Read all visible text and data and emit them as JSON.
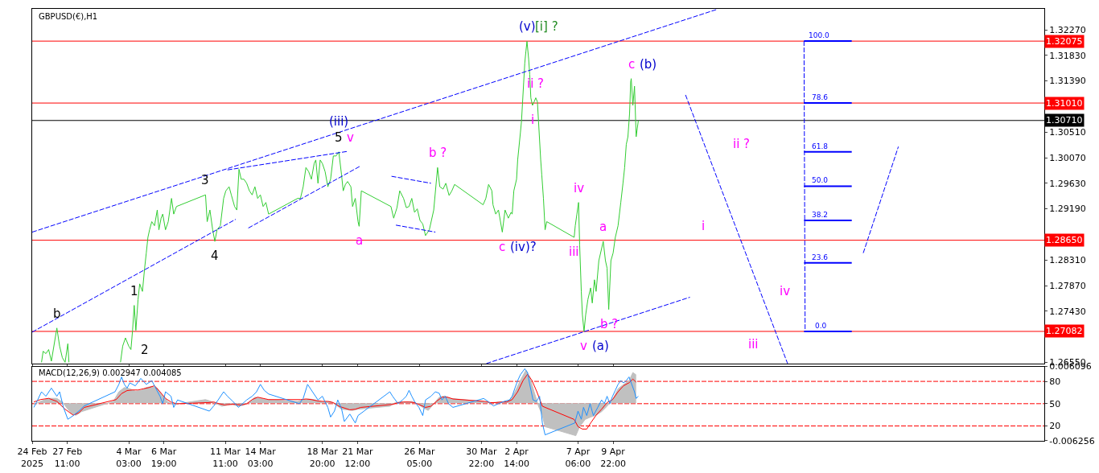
{
  "chart_data": [
    {
      "type": "line",
      "title": "GBPUSD(€),H1",
      "grid": false,
      "marker": "none",
      "tick_labels": "y",
      "xlim": [
        "2025-02-24T19:00",
        "2025-05-12T16:00"
      ],
      "xticks": [
        {
          "value": "2025-02-24T19:00",
          "label": null
        },
        {
          "value": "2025-02-27T11:00",
          "label": null
        },
        {
          "value": "2025-03-04T03:00",
          "label": null
        },
        {
          "value": "2025-03-06T19:00",
          "label": null
        },
        {
          "value": "2025-03-11T11:00",
          "label": null
        },
        {
          "value": "2025-03-14T03:00",
          "label": null
        },
        {
          "value": "2025-03-18T20:00",
          "label": null
        },
        {
          "value": "2025-03-21T12:00",
          "label": null
        },
        {
          "value": "2025-03-26T05:00",
          "label": null
        },
        {
          "value": "2025-03-30T22:00",
          "label": null
        },
        {
          "value": "2025-04-02T14:00",
          "label": null
        },
        {
          "value": "2025-04-07T06:00",
          "label": null
        },
        {
          "value": "2025-04-09T22:00",
          "label": null
        }
      ],
      "ylim": [
        1.2653,
        1.3263
      ],
      "yticks": [
        {
          "value": 1.3227,
          "label": "1.32270"
        },
        {
          "value": 1.3183,
          "label": "1.31830"
        },
        {
          "value": 1.3139,
          "label": "1.31390"
        },
        {
          "value": 1.3051,
          "label": "1.30510"
        },
        {
          "value": 1.3007,
          "label": "1.30070"
        },
        {
          "value": 1.2963,
          "label": "1.29630"
        },
        {
          "value": 1.2919,
          "label": "1.29190"
        },
        {
          "value": 1.2831,
          "label": "1.28310"
        },
        {
          "value": 1.2787,
          "label": "1.27870"
        },
        {
          "value": 1.2743,
          "label": "1.27430"
        },
        {
          "value": 1.2655,
          "label": "1.26550"
        }
      ],
      "series": [
        {
          "color": "#32cd32",
          "line_style": "solid",
          "x": [
            "2025-02-25T12:00",
            "2025-02-25T15:00",
            "2025-02-25T20:00",
            "2025-02-26T01:00",
            "2025-02-26T06:00",
            "2025-02-26T16:00",
            "2025-02-26T21:00",
            "2025-02-27T02:00",
            "2025-02-27T07:00",
            "2025-02-27T12:00",
            "2025-02-27T14:00",
            "2025-02-28T13:00",
            "2025-03-03T12:00",
            "2025-03-03T16:00",
            "2025-03-03T21:00",
            "2025-03-04T03:00",
            "2025-03-04T07:00",
            "2025-03-04T10:00",
            "2025-03-04T13:00",
            "2025-03-04T16:00",
            "2025-03-04T20:00",
            "2025-03-04T23:00",
            "2025-03-05T04:00",
            "2025-03-05T08:00",
            "2025-03-05T11:00",
            "2025-03-05T14:00",
            "2025-03-05T17:00",
            "2025-03-05T21:00",
            "2025-03-06T02:00",
            "2025-03-06T07:00",
            "2025-03-06T10:00",
            "2025-03-06T14:00",
            "2025-03-06T17:00",
            "2025-03-06T22:00",
            "2025-03-07T03:00",
            "2025-03-07T09:00",
            "2025-03-07T13:00",
            "2025-03-07T18:00",
            "2025-03-09T23:00",
            "2025-03-10T02:00",
            "2025-03-10T07:00",
            "2025-03-10T12:00",
            "2025-03-10T16:00",
            "2025-03-10T20:00",
            "2025-03-11T02:00",
            "2025-03-11T08:00",
            "2025-03-11T12:00",
            "2025-03-11T18:00",
            "2025-03-11T22:00",
            "2025-03-12T04:00",
            "2025-03-12T08:00",
            "2025-03-12T12:00",
            "2025-03-12T16:00",
            "2025-03-12T21:00",
            "2025-03-13T02:00",
            "2025-03-13T07:00",
            "2025-03-13T12:00",
            "2025-03-13T17:00",
            "2025-03-13T22:00",
            "2025-03-14T03:00",
            "2025-03-14T08:00",
            "2025-03-14T13:00",
            "2025-03-14T18:00",
            "2025-03-16T23:00",
            "2025-03-17T04:00",
            "2025-03-17T09:00",
            "2025-03-17T14:00",
            "2025-03-17T19:00",
            "2025-03-18T00:00",
            "2025-03-18T05:00",
            "2025-03-18T08:00",
            "2025-03-18T12:00",
            "2025-03-18T16:00",
            "2025-03-18T20:00",
            "2025-03-19T01:00",
            "2025-03-19T06:00",
            "2025-03-19T11:00",
            "2025-03-19T16:00",
            "2025-03-19T21:00",
            "2025-03-20T02:00",
            "2025-03-20T07:00",
            "2025-03-20T10:00",
            "2025-03-20T14:00",
            "2025-03-20T18:00",
            "2025-03-20T22:00",
            "2025-03-21T00:00",
            "2025-03-21T03:00",
            "2025-03-21T08:00",
            "2025-03-21T13:00",
            "2025-03-21T15:00",
            "2025-03-21T19:00",
            "2025-03-24T01:00",
            "2025-03-24T06:00",
            "2025-03-24T12:00",
            "2025-03-24T17:00",
            "2025-03-25T00:00",
            "2025-03-25T05:00",
            "2025-03-25T10:00",
            "2025-03-25T15:00",
            "2025-03-25T20:00",
            "2025-03-26T01:00",
            "2025-03-26T06:00",
            "2025-03-26T11:00",
            "2025-03-26T16:00",
            "2025-03-26T23:00",
            "2025-03-27T07:00",
            "2025-03-27T14:00",
            "2025-03-27T18:00",
            "2025-03-28T00:00",
            "2025-03-28T05:00",
            "2025-03-28T11:00",
            "2025-03-28T16:00",
            "2025-03-28T21:00",
            "2025-03-31T01:00",
            "2025-03-31T06:00",
            "2025-03-31T11:00",
            "2025-03-31T17:00",
            "2025-03-31T19:00",
            "2025-04-01T00:00",
            "2025-04-01T05:00",
            "2025-04-01T12:00",
            "2025-04-01T17:00",
            "2025-04-01T23:00",
            "2025-04-02T04:00",
            "2025-04-02T06:00",
            "2025-04-02T09:00",
            "2025-04-02T14:00",
            "2025-04-02T16:00",
            "2025-04-02T21:00",
            "2025-04-02T23:00",
            "2025-04-03T03:00",
            "2025-04-03T05:00",
            "2025-04-03T07:00",
            "2025-04-03T09:00",
            "2025-04-03T12:00",
            "2025-04-03T14:00",
            "2025-04-03T16:00",
            "2025-04-03T19:00",
            "2025-04-03T22:00",
            "2025-04-04T01:00",
            "2025-04-04T04:00",
            "2025-04-04T06:00",
            "2025-04-04T10:00",
            "2025-04-04T12:00",
            "2025-04-04T15:00",
            "2025-04-04T18:00",
            "2025-04-04T21:00",
            "2025-04-06T23:00",
            "2025-04-07T01:00",
            "2025-04-07T04:00",
            "2025-04-07T07:00",
            "2025-04-07T09:00",
            "2025-04-07T12:00",
            "2025-04-07T14:00",
            "2025-04-07T17:00",
            "2025-04-07T20:00",
            "2025-04-08T00:00",
            "2025-04-08T05:00",
            "2025-04-08T08:00",
            "2025-04-08T12:00",
            "2025-04-08T15:00",
            "2025-04-08T20:00",
            "2025-04-09T04:00",
            "2025-04-09T08:00",
            "2025-04-09T11:00",
            "2025-04-09T14:00",
            "2025-04-09T18:00",
            "2025-04-09T22:00",
            "2025-04-10T02:00",
            "2025-04-10T07:00",
            "2025-04-10T12:00",
            "2025-04-10T16:00",
            "2025-04-10T19:00",
            "2025-04-10T22:00",
            "2025-04-11T01:00",
            "2025-04-11T04:00",
            "2025-04-11T06:00",
            "2025-04-11T07:00",
            "2025-04-11T10:00",
            "2025-04-11T13:00",
            "2025-04-11T16:00",
            "2025-04-11T18:00",
            "2025-04-11T20:00"
          ],
          "values": [
            1.2655,
            1.2674,
            1.267,
            1.2677,
            1.2657,
            1.2714,
            1.2683,
            1.2663,
            1.2655,
            1.2687,
            1.2655,
            null,
            1.2655,
            1.2683,
            1.2697,
            1.2683,
            1.2677,
            1.271,
            1.2753,
            1.271,
            1.2763,
            1.279,
            1.2777,
            1.2817,
            1.2843,
            1.287,
            1.2883,
            1.2897,
            1.289,
            1.2917,
            1.2883,
            1.2903,
            1.291,
            1.2883,
            1.2897,
            1.2937,
            1.291,
            1.2923,
            1.2943,
            1.2897,
            1.2917,
            1.2883,
            1.2863,
            1.2883,
            1.289,
            1.2937,
            1.295,
            1.2957,
            1.2943,
            1.2923,
            1.2917,
            1.2987,
            1.297,
            1.297,
            1.2963,
            1.295,
            1.2943,
            1.2957,
            1.2937,
            1.2943,
            1.2923,
            1.293,
            1.291,
            1.2937,
            1.2937,
            1.2957,
            1.299,
            1.2983,
            1.297,
            1.2997,
            1.3003,
            1.2963,
            1.3003,
            1.2997,
            1.2983,
            1.2957,
            1.297,
            1.301,
            1.301,
            1.3017,
            1.2977,
            1.295,
            1.2961,
            1.2966,
            1.296,
            1.2957,
            1.2923,
            1.2937,
            1.2897,
            1.2889,
            1.295,
            1.2923,
            1.2903,
            1.2921,
            1.295,
            1.2937,
            1.2921,
            1.2923,
            1.2937,
            1.2913,
            1.2919,
            1.2899,
            1.2893,
            1.2873,
            1.2883,
            1.2917,
            1.299,
            1.2957,
            1.2953,
            1.2963,
            1.2942,
            1.295,
            1.2961,
            1.2926,
            1.2937,
            1.2961,
            1.295,
            1.2926,
            1.291,
            1.2917,
            1.2879,
            1.2917,
            1.2903,
            1.2913,
            1.291,
            1.295,
            1.297,
            1.3003,
            1.305,
            1.307,
            1.3137,
            1.317,
            1.319,
            1.3207,
            1.3177,
            1.315,
            1.311,
            1.3097,
            1.3103,
            1.311,
            1.3103,
            1.307,
            1.3003,
            1.2977,
            1.2937,
            1.2883,
            1.2897,
            1.287,
            1.289,
            1.291,
            1.293,
            1.2857,
            1.2777,
            1.2737,
            1.2708,
            1.2737,
            1.2763,
            1.2783,
            1.2757,
            1.2797,
            1.2777,
            1.283,
            1.2863,
            1.283,
            1.2817,
            1.2746,
            1.283,
            1.2843,
            1.287,
            1.289,
            1.293,
            1.2963,
            1.299,
            1.303,
            1.3043,
            1.3083,
            1.3137,
            1.3143,
            1.3097,
            1.313,
            1.3043,
            1.3057,
            1.3071
          ]
        },
        {
          "color": "#0000ff",
          "line_style": "dashed",
          "x": [
            "2025-02-24T19:00",
            "2025-04-17T19:00"
          ],
          "values": [
            1.2879,
            1.3262
          ]
        },
        {
          "color": "#0000ff",
          "line_style": "dashed",
          "x": [
            "2025-02-24T19:00",
            "2025-03-12T06:00"
          ],
          "values": [
            1.2707,
            1.2901
          ]
        },
        {
          "color": "#0000ff",
          "line_style": "dashed",
          "x": [
            "2025-03-13T05:00",
            "2025-03-21T18:00"
          ],
          "values": [
            1.2886,
            1.2993
          ]
        },
        {
          "color": "#0000ff",
          "line_style": "dashed",
          "x": [
            "2025-03-11T15:00",
            "2025-03-20T19:00"
          ],
          "values": [
            1.2986,
            1.3018
          ]
        },
        {
          "color": "#0000ff",
          "line_style": "dashed",
          "x": [
            "2025-03-24T02:00",
            "2025-03-27T02:00"
          ],
          "values": [
            1.2975,
            1.2963
          ]
        },
        {
          "color": "#0000ff",
          "line_style": "dashed",
          "x": [
            "2025-03-24T10:00",
            "2025-03-27T10:00"
          ],
          "values": [
            1.2891,
            1.2879
          ]
        },
        {
          "color": "#0000ff",
          "line_style": "dashed",
          "x": [
            "2025-03-31T07:00",
            "2025-04-15T18:00"
          ],
          "values": [
            1.2653,
            1.2767
          ]
        },
        {
          "color": "#0000ff",
          "line_style": "dashed",
          "x": [
            "2025-04-15T10:00",
            "2025-04-23T04:00"
          ],
          "values": [
            1.3115,
            1.2653
          ]
        },
        {
          "color": "#0000ff",
          "line_style": "dashed",
          "x": [
            "2025-04-28T22:00",
            "2025-05-01T14:00"
          ],
          "values": [
            1.2843,
            1.3026
          ]
        },
        {
          "color": "#0000ff",
          "line_style": "dashed",
          "x": [
            "2025-04-24T10:00",
            "2025-04-24T12:00"
          ],
          "values": [
            1.32075,
            1.27082
          ]
        },
        {
          "color": "#0000ff",
          "line_style": "solid",
          "x": [
            "2025-04-24T10:00",
            "2025-04-28T01:00"
          ],
          "values": [
            1.32075,
            1.32075
          ]
        },
        {
          "color": "#0000ff",
          "line_style": "solid",
          "x": [
            "2025-04-24T10:00",
            "2025-04-28T01:00"
          ],
          "values": [
            1.3101,
            1.3101
          ]
        },
        {
          "color": "#0000ff",
          "line_style": "solid",
          "x": [
            "2025-04-24T10:00",
            "2025-04-28T01:00"
          ],
          "values": [
            1.3017,
            1.3017
          ]
        },
        {
          "color": "#0000ff",
          "line_style": "solid",
          "x": [
            "2025-04-24T10:00",
            "2025-04-28T01:00"
          ],
          "values": [
            1.2958,
            1.2958
          ]
        },
        {
          "color": "#0000ff",
          "line_style": "solid",
          "x": [
            "2025-04-24T10:00",
            "2025-04-28T01:00"
          ],
          "values": [
            1.2899,
            1.2899
          ]
        },
        {
          "color": "#0000ff",
          "line_style": "solid",
          "x": [
            "2025-04-24T10:00",
            "2025-04-28T01:00"
          ],
          "values": [
            1.2826,
            1.2826
          ]
        },
        {
          "color": "#0000ff",
          "line_style": "solid",
          "x": [
            "2025-04-24T10:00",
            "2025-04-28T01:00"
          ],
          "values": [
            1.27082,
            1.27082
          ]
        }
      ],
      "ref_lines": [
        {
          "axis": "y",
          "value": 1.32075,
          "label": "1.32075",
          "color": "#ff0000"
        },
        {
          "axis": "y",
          "value": 1.3101,
          "label": "1.31010",
          "color": "#ff0000"
        },
        {
          "axis": "y",
          "value": 1.3071,
          "label": "1.30710",
          "color": "#000000",
          "line_style": "solid"
        },
        {
          "axis": "y",
          "value": 1.2865,
          "label": "1.28650",
          "color": "#ff0000"
        },
        {
          "axis": "y",
          "value": 1.27082,
          "label": "1.27082",
          "color": "#ff0000"
        }
      ],
      "annotations": [
        {
          "text": "100.0",
          "x": "2025-04-25T13:00",
          "y": 1.32075
        },
        {
          "text": "78.6",
          "x": "2025-04-25T15:00",
          "y": 1.3101
        },
        {
          "text": "61.8",
          "x": "2025-04-25T15:00",
          "y": 1.3017
        },
        {
          "text": "50.0",
          "x": "2025-04-25T15:00",
          "y": 1.2958
        },
        {
          "text": "38.2",
          "x": "2025-04-25T15:00",
          "y": 1.2899
        },
        {
          "text": "23.6",
          "x": "2025-04-25T15:00",
          "y": 1.2826
        },
        {
          "text": "0.0",
          "x": "2025-04-25T17:00",
          "y": 1.27082
        },
        {
          "text": "b",
          "x": "2025-02-26T16:00",
          "y": 1.2714
        },
        {
          "text": "1",
          "x": "2025-03-04T13:00",
          "y": 1.2753
        },
        {
          "text": "2",
          "x": "2025-03-04T07:00",
          "y": 1.2677
        },
        {
          "text": "3",
          "x": "2025-03-09T23:00",
          "y": 1.2943
        },
        {
          "text": "4",
          "x": "2025-03-10T16:00",
          "y": 1.2863
        },
        {
          "text": "5",
          "x": "2025-03-20T02:00",
          "y": 1.3017
        },
        {
          "text": "v",
          "x": "2025-03-20T02:00",
          "y": 1.3017
        },
        {
          "text": "(iii)",
          "x": "2025-03-20T02:00",
          "y": 1.3017
        },
        {
          "text": "a",
          "x": "2025-03-21T15:00",
          "y": 1.2889
        },
        {
          "text": "b ?",
          "x": "2025-03-27T14:00",
          "y": 1.299
        },
        {
          "text": "c",
          "x": "2025-04-01T12:00",
          "y": 1.2879
        },
        {
          "text": "(iv)?",
          "x": "2025-04-01T12:00",
          "y": 1.2879
        },
        {
          "text": "(v)",
          "x": "2025-04-03T09:00",
          "y": 1.3207
        },
        {
          "text": "[i] ?",
          "x": "2025-04-03T09:00",
          "y": 1.3207
        },
        {
          "text": "ii ?",
          "x": "2025-04-04T01:00",
          "y": 1.311
        },
        {
          "text": "i",
          "x": "2025-04-03T19:00",
          "y": 1.3097
        },
        {
          "text": "iv",
          "x": "2025-04-07T07:00",
          "y": 1.293
        },
        {
          "text": "iii",
          "x": "2025-04-06T23:00",
          "y": 1.287
        },
        {
          "text": "v",
          "x": "2025-04-07T17:00",
          "y": 1.2708
        },
        {
          "text": "(a)",
          "x": "2025-04-07T17:00",
          "y": 1.2708
        },
        {
          "text": "a",
          "x": "2025-04-09T04:00",
          "y": 1.2863
        },
        {
          "text": "b ?",
          "x": "2025-04-09T14:00",
          "y": 1.2746
        },
        {
          "text": "c",
          "x": "2025-04-11T07:00",
          "y": 1.3143
        },
        {
          "text": "(b)",
          "x": "2025-04-11T07:00",
          "y": 1.3143
        },
        {
          "text": "i",
          "x": "2025-04-16T18:00",
          "y": 1.2865
        },
        "ii ?",
        "iii",
        "iv"
      ]
    },
    {
      "type": "line",
      "title": "MACD(12,26,9) 0.002947 0.004085",
      "grid": false,
      "marker": "none",
      "xlim": [
        "2025-02-24T19:00",
        "2025-05-12T16:00"
      ],
      "xticks": [
        {
          "value": "2025-02-24T19:00",
          "label": "24 Feb 2025"
        },
        {
          "value": "2025-02-27T11:00",
          "label": "27 Feb 11:00"
        },
        {
          "value": "2025-03-04T03:00",
          "label": "4 Mar 03:00"
        },
        {
          "value": "2025-03-06T19:00",
          "label": "6 Mar 19:00"
        },
        {
          "value": "2025-03-11T11:00",
          "label": "11 Mar 11:00"
        },
        {
          "value": "2025-03-14T03:00",
          "label": "14 Mar 03:00"
        },
        {
          "value": "2025-03-18T20:00",
          "label": "18 Mar 20:00"
        },
        {
          "value": "2025-03-21T12:00",
          "label": "21 Mar 12:00"
        },
        {
          "value": "2025-03-26T05:00",
          "label": "26 Mar 05:00"
        },
        {
          "value": "2025-03-30T22:00",
          "label": "30 Mar 22:00"
        },
        {
          "value": "2025-04-02T14:00",
          "label": "2 Apr 14:00"
        },
        {
          "value": "2025-04-07T06:00",
          "label": "7 Apr 06:00"
        },
        {
          "value": "2025-04-09T22:00",
          "label": "9 Apr 22:00"
        }
      ],
      "ylim": [
        -0.006256,
        0.006096
      ],
      "yticks": [
        0.006096,
        -0.006256
      ],
      "y2lim": [
        0,
        100
      ],
      "y2ticks": [
        80,
        50,
        20
      ],
      "series": [
        {
          "type": "area",
          "color": "#c0c0c0",
          "x": [
            "2025-02-24T22:00",
            "2025-02-25T10:00",
            "2025-02-26T01:00",
            "2025-02-26T16:00",
            "2025-02-27T02:00",
            "2025-02-27T12:00",
            "2025-02-27T20:00",
            "2025-02-28T03:00",
            "2025-02-28T13:00",
            "2025-03-02T23:00",
            "2025-03-03T09:00",
            "2025-03-03T19:00",
            "2025-03-04T05:00",
            "2025-03-04T15:00",
            "2025-03-05T01:00",
            "2025-03-05T11:00",
            "2025-03-05T21:00",
            "2025-03-06T07:00",
            "2025-03-06T17:00",
            "2025-03-07T03:00",
            "2025-03-07T13:00",
            "2025-03-09T23:00",
            "2025-03-10T09:00",
            "2025-03-10T19:00",
            "2025-03-11T05:00",
            "2025-03-11T15:00",
            "2025-03-12T01:00",
            "2025-03-12T11:00",
            "2025-03-12T21:00",
            "2025-03-13T07:00",
            "2025-03-13T17:00",
            "2025-03-14T03:00",
            "2025-03-14T13:00",
            "2025-03-16T23:00",
            "2025-03-17T09:00",
            "2025-03-17T19:00",
            "2025-03-18T05:00",
            "2025-03-18T15:00",
            "2025-03-19T01:00",
            "2025-03-19T11:00",
            "2025-03-19T21:00",
            "2025-03-20T07:00",
            "2025-03-20T17:00",
            "2025-03-21T03:00",
            "2025-03-21T13:00",
            "2025-03-23T23:00",
            "2025-03-24T09:00",
            "2025-03-24T19:00",
            "2025-03-25T05:00",
            "2025-03-25T15:00",
            "2025-03-26T01:00",
            "2025-03-26T11:00",
            "2025-03-26T21:00",
            "2025-03-27T07:00",
            "2025-03-27T17:00",
            "2025-03-28T03:00",
            "2025-03-28T13:00",
            "2025-03-30T23:00",
            "2025-03-31T09:00",
            "2025-03-31T19:00",
            "2025-04-01T05:00",
            "2025-04-01T15:00",
            "2025-04-02T01:00",
            "2025-04-02T11:00",
            "2025-04-02T21:00",
            "2025-04-03T07:00",
            "2025-04-03T14:00",
            "2025-04-03T22:00",
            "2025-04-04T06:00",
            "2025-04-04T13:00",
            "2025-04-04T18:00",
            "2025-04-07T02:00",
            "2025-04-07T09:00",
            "2025-04-07T19:00",
            "2025-04-08T05:00",
            "2025-04-08T15:00",
            "2025-04-09T01:00",
            "2025-04-09T11:00",
            "2025-04-09T21:00",
            "2025-04-10T07:00",
            "2025-04-10T17:00",
            "2025-04-11T03:00",
            "2025-04-11T10:00",
            "2025-04-11T16:00"
          ],
          "values": [
            -0.0002,
            0.0003,
            0.0008,
            0.0008,
            0.0002,
            -0.001,
            -0.0018,
            -0.002,
            -0.0014,
            0.0003,
            0.0019,
            0.0026,
            0.0024,
            0.002,
            0.0021,
            0.0026,
            0.0028,
            0.0025,
            0.0012,
            0.0002,
            -0.0002,
            0.0006,
            0.0003,
            -0.0001,
            -0.0005,
            -0.0003,
            -0.0002,
            -0.0005,
            -0.0003,
            0.0002,
            0.001,
            0.0008,
            0.0006,
            0.0003,
            0.0006,
            0.0007,
            0.0006,
            0.0003,
            0.0002,
            0.0003,
            -0.0003,
            -0.001,
            -0.0011,
            -0.0012,
            -0.001,
            -0.0005,
            0.0001,
            0.0002,
            0.0002,
            0.0003,
            -0.0001,
            -0.0007,
            -0.0012,
            -0.0001,
            0.001,
            0.0012,
            0.0008,
            0.0003,
            0.0001,
            0.0001,
            0.0002,
            0.0002,
            0.0004,
            0.0019,
            0.0038,
            0.0055,
            0.0044,
            0.0019,
            -0.0005,
            -0.002,
            -0.0039,
            -0.0054,
            -0.0039,
            -0.0027,
            -0.0023,
            -0.002,
            -0.0014,
            -0.0005,
            0.0006,
            0.0024,
            0.0031,
            0.0037,
            0.0051,
            0.0047
          ]
        },
        {
          "type": "line",
          "axis": "y2",
          "color": "#1e90ff",
          "x": [
            "2025-02-24T22:00",
            "2025-02-25T05:00",
            "2025-02-25T12:00",
            "2025-02-25T20:00",
            "2025-02-26T06:00",
            "2025-02-26T16:00",
            "2025-02-26T21:00",
            "2025-02-27T04:00",
            "2025-02-27T12:00",
            "2025-02-27T22:00",
            "2025-02-28T08:00",
            "2025-02-28T18:00",
            "2025-03-03T02:00",
            "2025-03-03T09:00",
            "2025-03-03T14:00",
            "2025-03-03T19:00",
            "2025-03-04T00:00",
            "2025-03-04T05:00",
            "2025-03-04T15:00",
            "2025-03-05T01:00",
            "2025-03-05T11:00",
            "2025-03-05T21:00",
            "2025-03-06T02:00",
            "2025-03-06T12:00",
            "2025-03-06T17:00",
            "2025-03-06T22:00",
            "2025-03-07T08:00",
            "2025-03-07T13:00",
            "2025-03-07T20:00",
            "2025-03-10T06:00",
            "2025-03-10T14:00",
            "2025-03-10T22:00",
            "2025-03-11T08:00",
            "2025-03-11T15:00",
            "2025-03-12T01:00",
            "2025-03-12T11:00",
            "2025-03-13T02:00",
            "2025-03-13T12:00",
            "2025-03-13T20:00",
            "2025-03-14T03:00",
            "2025-03-14T10:00",
            "2025-03-14T18:00",
            "2025-03-17T02:00",
            "2025-03-17T09:00",
            "2025-03-17T17:00",
            "2025-03-18T02:00",
            "2025-03-18T12:00",
            "2025-03-18T20:00",
            "2025-03-19T06:00",
            "2025-03-19T11:00",
            "2025-03-19T18:00",
            "2025-03-20T00:00",
            "2025-03-20T07:00",
            "2025-03-20T12:00",
            "2025-03-20T22:00",
            "2025-03-21T08:00",
            "2025-03-21T13:00",
            "2025-03-23T23:00",
            "2025-03-24T04:00",
            "2025-03-24T14:00",
            "2025-03-24T22:00",
            "2025-03-25T05:00",
            "2025-03-25T10:00",
            "2025-03-25T15:00",
            "2025-03-25T20:00",
            "2025-03-26T04:00",
            "2025-03-26T11:00",
            "2025-03-26T16:00",
            "2025-03-27T02:00",
            "2025-03-27T10:00",
            "2025-03-27T17:00",
            "2025-03-27T22:00",
            "2025-03-28T04:00",
            "2025-03-28T10:00",
            "2025-03-28T18:00",
            "2025-03-31T02:00",
            "2025-03-31T10:00",
            "2025-03-31T20:00",
            "2025-04-01T05:00",
            "2025-04-01T15:00",
            "2025-04-02T01:00",
            "2025-04-02T06:00",
            "2025-04-02T11:00",
            "2025-04-02T16:00",
            "2025-04-02T21:00",
            "2025-04-03T05:00",
            "2025-04-03T10:00",
            "2025-04-03T14:00",
            "2025-04-03T20:00",
            "2025-04-04T02:00",
            "2025-04-04T08:00",
            "2025-04-04T13:00",
            "2025-04-04T18:00",
            "2025-04-07T00:00",
            "2025-04-07T06:00",
            "2025-04-07T12:00",
            "2025-04-07T16:00",
            "2025-04-07T22:00",
            "2025-04-08T04:00",
            "2025-04-08T10:00",
            "2025-04-08T18:00",
            "2025-04-09T01:00",
            "2025-04-09T06:00",
            "2025-04-09T11:00",
            "2025-04-09T16:00",
            "2025-04-09T21:00",
            "2025-04-10T02:00",
            "2025-04-10T07:00",
            "2025-04-10T12:00",
            "2025-04-10T17:00",
            "2025-04-10T22:00",
            "2025-04-11T03:00",
            "2025-04-11T08:00",
            "2025-04-11T13:00",
            "2025-04-11T16:00",
            "2025-04-11T20:00"
          ],
          "values": [
            45,
            55,
            66,
            60,
            71,
            60,
            66,
            45,
            29,
            34,
            40,
            47,
            66,
            76,
            86,
            76,
            71,
            78,
            74,
            84,
            76,
            81,
            74,
            60,
            50,
            66,
            60,
            45,
            55,
            40,
            47,
            55,
            66,
            60,
            53,
            45,
            55,
            60,
            66,
            76,
            68,
            63,
            50,
            57,
            76,
            66,
            55,
            60,
            45,
            32,
            40,
            55,
            43,
            26,
            36,
            24,
            34,
            66,
            60,
            50,
            55,
            60,
            68,
            60,
            53,
            45,
            34,
            55,
            60,
            66,
            64,
            55,
            60,
            50,
            45,
            57,
            53,
            47,
            50,
            53,
            55,
            60,
            71,
            81,
            89,
            97,
            92,
            76,
            55,
            53,
            60,
            24,
            8,
            24,
            40,
            29,
            45,
            34,
            50,
            34,
            45,
            55,
            50,
            60,
            50,
            60,
            68,
            76,
            81,
            78,
            81,
            86,
            76,
            66,
            57,
            60
          ]
        },
        {
          "type": "line",
          "color": "#ff0000",
          "x": [
            "2025-02-24T22:00",
            "2025-02-25T10:00",
            "2025-02-26T01:00",
            "2025-02-26T16:00",
            "2025-02-27T07:00",
            "2025-02-27T22:00",
            "2025-02-28T08:00",
            "2025-02-28T18:00",
            "2025-03-03T04:00",
            "2025-03-03T14:00",
            "2025-03-04T00:00",
            "2025-03-04T10:00",
            "2025-03-04T20:00",
            "2025-03-05T06:00",
            "2025-03-05T16:00",
            "2025-03-06T02:00",
            "2025-03-06T12:00",
            "2025-03-06T22:00",
            "2025-03-07T08:00",
            "2025-03-07T18:00",
            "2025-03-10T04:00",
            "2025-03-10T14:00",
            "2025-03-11T00:00",
            "2025-03-11T10:00",
            "2025-03-11T20:00",
            "2025-03-12T06:00",
            "2025-03-12T16:00",
            "2025-03-13T02:00",
            "2025-03-13T12:00",
            "2025-03-13T22:00",
            "2025-03-14T08:00",
            "2025-03-14T18:00",
            "2025-03-17T04:00",
            "2025-03-17T14:00",
            "2025-03-18T00:00",
            "2025-03-18T10:00",
            "2025-03-18T20:00",
            "2025-03-19T06:00",
            "2025-03-19T16:00",
            "2025-03-20T02:00",
            "2025-03-20T12:00",
            "2025-03-20T22:00",
            "2025-03-21T08:00",
            "2025-03-21T18:00",
            "2025-03-24T04:00",
            "2025-03-24T14:00",
            "2025-03-25T00:00",
            "2025-03-25T10:00",
            "2025-03-25T20:00",
            "2025-03-26T06:00",
            "2025-03-26T16:00",
            "2025-03-27T02:00",
            "2025-03-27T12:00",
            "2025-03-27T22:00",
            "2025-03-28T08:00",
            "2025-03-28T18:00",
            "2025-03-31T04:00",
            "2025-03-31T14:00",
            "2025-04-01T00:00",
            "2025-04-01T10:00",
            "2025-04-01T20:00",
            "2025-04-02T06:00",
            "2025-04-02T16:00",
            "2025-04-03T02:00",
            "2025-04-03T10:00",
            "2025-04-03T18:00",
            "2025-04-04T03:00",
            "2025-04-04T13:00",
            "2025-04-06T23:00",
            "2025-04-07T06:00",
            "2025-04-07T14:00",
            "2025-04-07T22:00",
            "2025-04-08T05:00",
            "2025-04-08T15:00",
            "2025-04-09T01:00",
            "2025-04-09T11:00",
            "2025-04-09T21:00",
            "2025-04-10T07:00",
            "2025-04-10T17:00",
            "2025-04-11T03:00",
            "2025-04-11T10:00",
            "2025-04-11T16:00"
          ],
          "values": [
            0.0002,
            0.0006,
            0.0008,
            0.0003,
            -0.001,
            -0.002,
            -0.0016,
            -0.0007,
            0.0006,
            0.0016,
            0.0021,
            0.0022,
            0.0022,
            0.0024,
            0.0026,
            0.0029,
            0.0019,
            0.0008,
            0.0002,
            -0.0001,
            0.0001,
            0.0002,
            -0.0001,
            -0.0003,
            -0.0002,
            -0.0002,
            -0.0003,
            -0.0001,
            0.0006,
            0.001,
            0.0008,
            0.0006,
            0.0006,
            0.0007,
            0.0006,
            0.0004,
            0.0003,
            0.0003,
            0.0001,
            -0.0005,
            -0.0008,
            -0.0011,
            -0.001,
            -0.0007,
            -0.0002,
            0.0001,
            0.0002,
            0.0002,
            0.0001,
            -0.0003,
            -0.0007,
            -0.0005,
            0.0003,
            0.001,
            0.001,
            0.0007,
            0.0003,
            0.0001,
            0.0001,
            0.0002,
            0.0002,
            0.0006,
            0.0019,
            0.0038,
            0.0048,
            0.0038,
            0.0019,
            -0.0005,
            -0.0027,
            -0.0039,
            -0.0043,
            -0.0043,
            -0.0033,
            -0.002,
            -0.001,
            0.0001,
            0.0006,
            0.0019,
            0.0029,
            0.0034,
            0.004,
            0.0035
          ]
        }
      ],
      "ref_lines": [
        {
          "axis": "y2",
          "value": 80,
          "color": "#ff0000",
          "line_style": "dashed"
        },
        {
          "axis": "y2",
          "value": 50,
          "color": "#ff0000",
          "line_style": "dashed"
        },
        {
          "axis": "y2",
          "value": 20,
          "color": "#ff0000",
          "line_style": "dashed"
        }
      ]
    }
  ]
}
